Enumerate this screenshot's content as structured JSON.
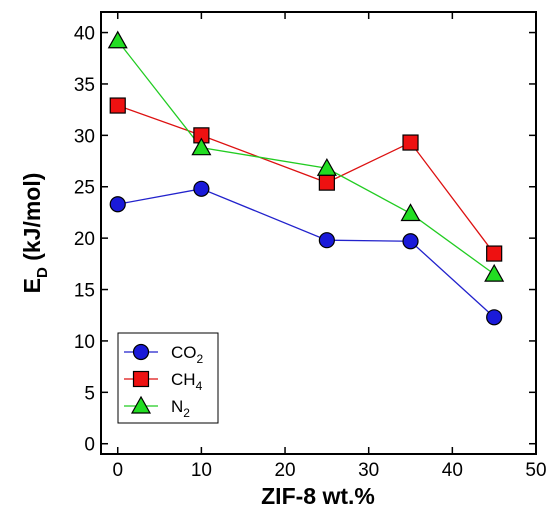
{
  "chart_data": {
    "type": "line",
    "xlabel": "ZIF-8 wt.%",
    "ylabel_main": "E",
    "ylabel_sub": "D",
    "ylabel_rest": " (kJ/mol)",
    "xlim": [
      -2,
      50
    ],
    "ylim": [
      -1,
      42
    ],
    "xticks": [
      0,
      10,
      20,
      30,
      40,
      50
    ],
    "yticks": [
      0,
      5,
      10,
      15,
      20,
      25,
      30,
      35,
      40
    ],
    "grid": false,
    "legend_position": "bottom-left",
    "series": [
      {
        "name_main": "CO",
        "name_sub": "2",
        "marker": "circle",
        "line_color": "#2222cc",
        "marker_color": "#1a1ad9",
        "x": [
          0,
          10,
          25,
          35,
          45
        ],
        "y": [
          23.3,
          24.8,
          19.8,
          19.7,
          12.3
        ]
      },
      {
        "name_main": "CH",
        "name_sub": "4",
        "marker": "square",
        "line_color": "#dd1111",
        "marker_color": "#ee1111",
        "x": [
          0,
          10,
          25,
          35,
          45
        ],
        "y": [
          32.9,
          30.0,
          25.4,
          29.3,
          18.5
        ]
      },
      {
        "name_main": "N",
        "name_sub": "2",
        "marker": "triangle",
        "line_color": "#22cc22",
        "marker_color": "#22dd22",
        "x": [
          0,
          10,
          25,
          35,
          45
        ],
        "y": [
          39.2,
          28.8,
          26.8,
          22.4,
          16.5
        ]
      }
    ]
  }
}
